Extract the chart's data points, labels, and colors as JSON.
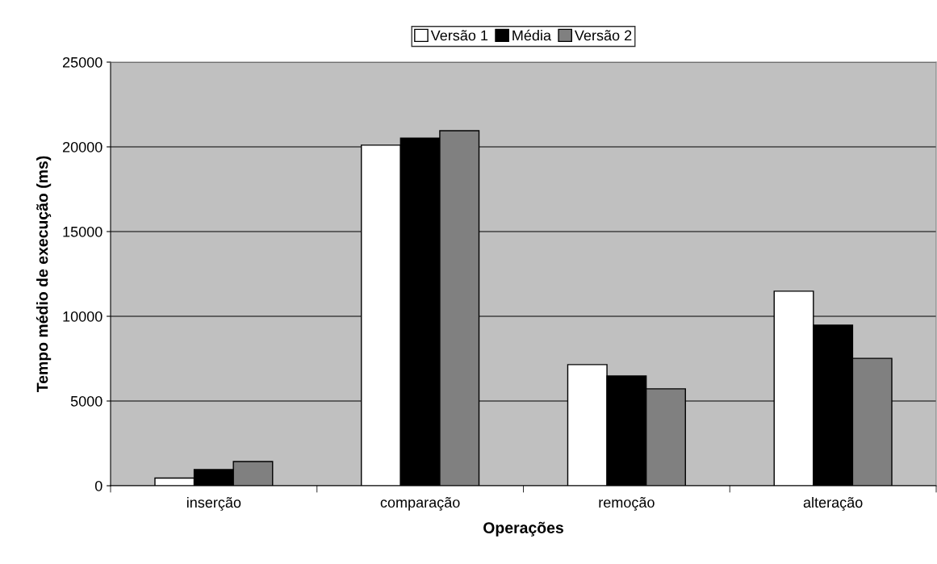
{
  "chart_data": {
    "type": "bar",
    "xlabel": "Operações",
    "ylabel": "Tempo médio de execução (ms)",
    "categories": [
      "inserção",
      "comparação",
      "remoção",
      "alteração"
    ],
    "series": [
      {
        "name": "Versão 1",
        "color": "#ffffff",
        "values": [
          450,
          20100,
          7150,
          11480
        ]
      },
      {
        "name": "Média",
        "color": "#000000",
        "values": [
          950,
          20520,
          6480,
          9480
        ]
      },
      {
        "name": "Versão 2",
        "color": "#808080",
        "values": [
          1430,
          20950,
          5720,
          7520
        ]
      }
    ],
    "ylim": [
      0,
      25000
    ],
    "yticks": [
      0,
      5000,
      10000,
      15000,
      20000,
      25000
    ],
    "grid": "y",
    "legend": "top"
  }
}
